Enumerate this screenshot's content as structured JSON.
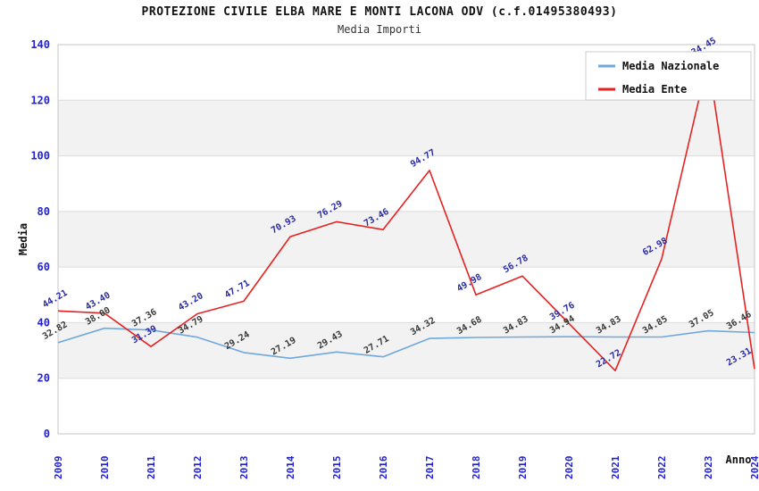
{
  "title": "PROTEZIONE CIVILE ELBA MARE E MONTI LACONA ODV (c.f.01495380493)",
  "subtitle": "Media Importi",
  "chart_data": {
    "type": "line",
    "x": [
      2009,
      2010,
      2011,
      2012,
      2013,
      2014,
      2015,
      2016,
      2017,
      2018,
      2019,
      2020,
      2021,
      2022,
      2023,
      2024
    ],
    "series": [
      {
        "name": "Media Nazionale",
        "color": "#6fa8dc",
        "label_color": "#383838",
        "values": [
          32.82,
          38.0,
          37.36,
          34.79,
          29.24,
          27.19,
          29.43,
          27.71,
          34.32,
          34.68,
          34.83,
          34.94,
          34.83,
          34.85,
          37.05,
          36.46
        ]
      },
      {
        "name": "Media Ente",
        "color": "#e62222",
        "label_color": "#2929a3",
        "values": [
          44.21,
          43.4,
          31.39,
          43.2,
          47.71,
          70.93,
          76.29,
          73.46,
          94.77,
          49.98,
          56.78,
          39.76,
          22.72,
          62.98,
          134.45,
          23.31
        ]
      }
    ],
    "xlabel": "Anno",
    "ylabel": "Media",
    "ylim": [
      0,
      140
    ],
    "yticks": [
      0,
      20,
      40,
      60,
      80,
      100,
      120,
      140
    ],
    "grid": true,
    "band_colors": [
      "#ffffff",
      "#f2f2f2"
    ],
    "gridline_color": "#dcdcdc",
    "border_color": "#c4c4c4",
    "axis_tick_color": "#2222cc",
    "axis_title_color": "#111111",
    "legend_position": "top-right"
  }
}
